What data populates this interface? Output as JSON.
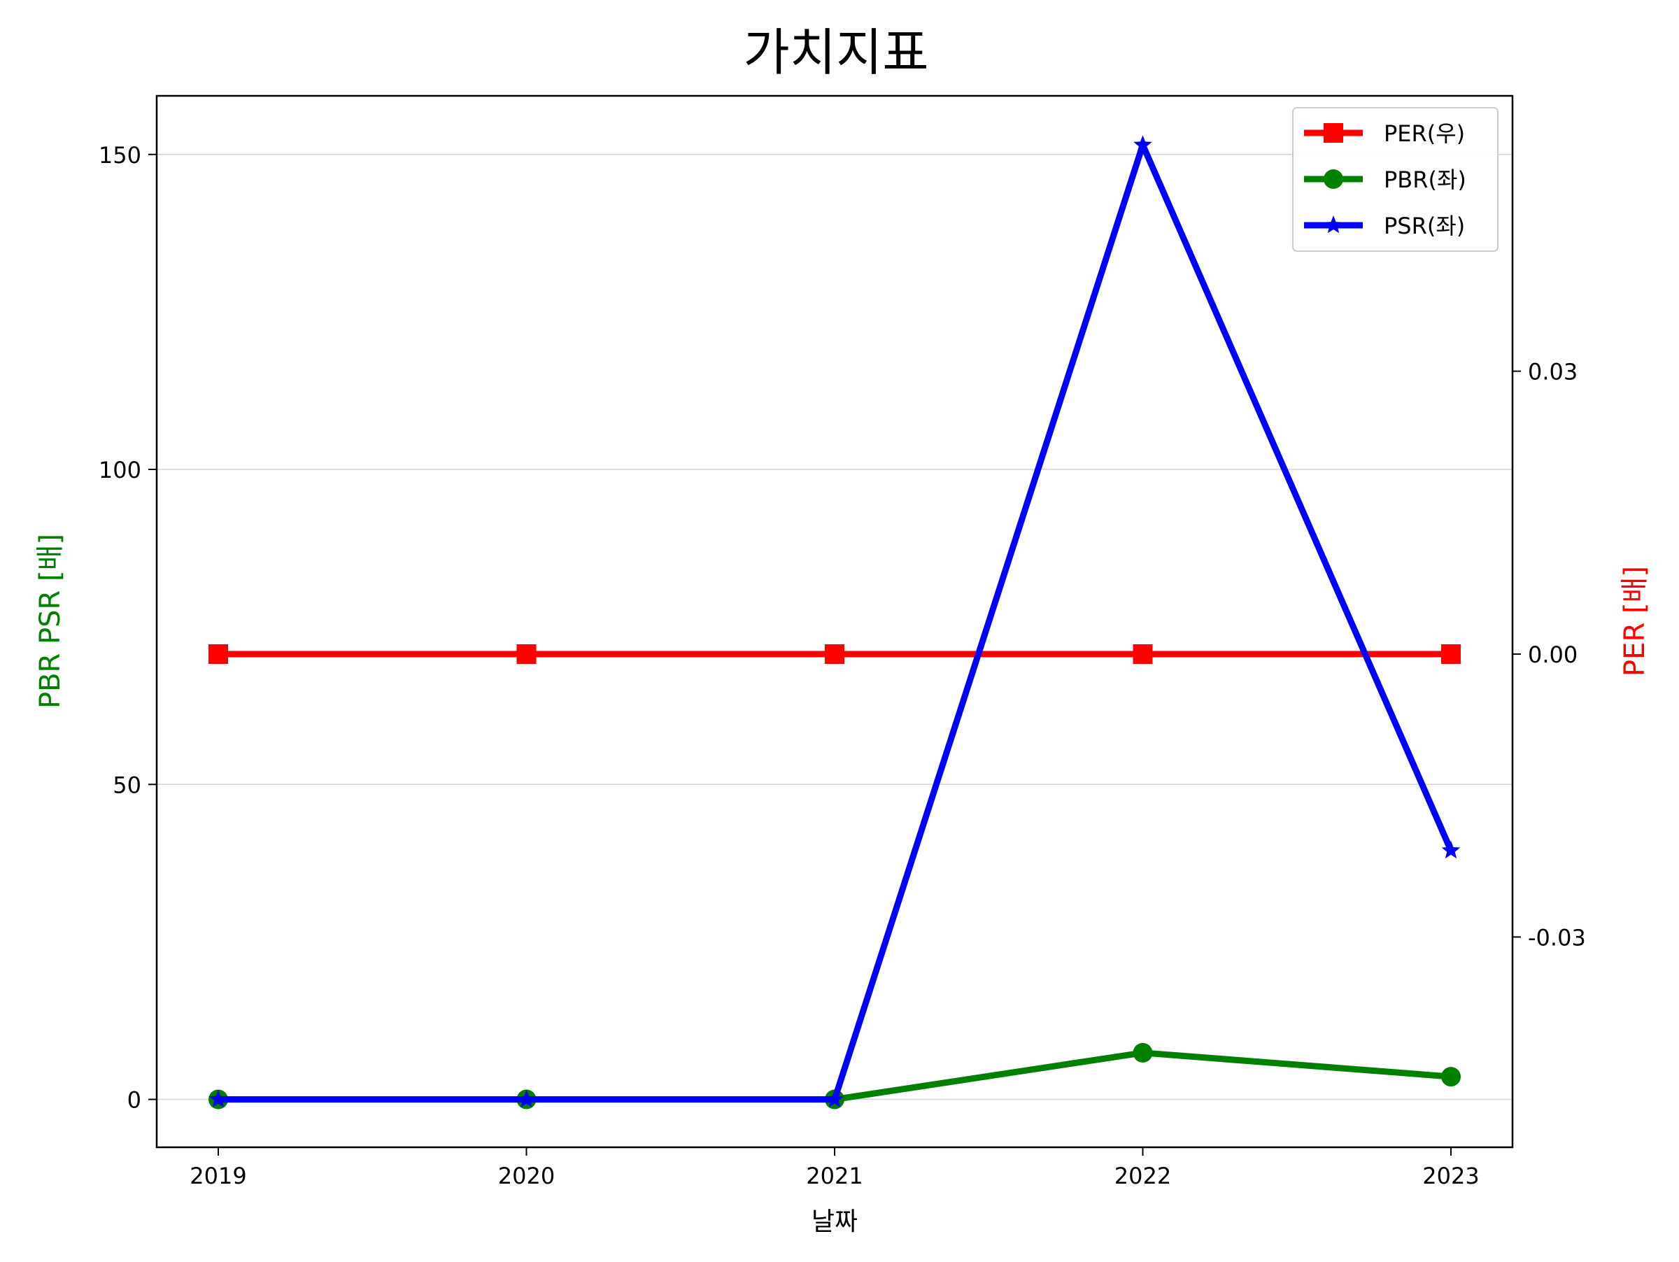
{
  "chart_data": {
    "type": "line",
    "title": "가치지표",
    "xlabel": "날짜",
    "ylabel_left": "PBR PSR [배]",
    "ylabel_right": "PER [배]",
    "categories": [
      "2019",
      "2020",
      "2021",
      "2022",
      "2023"
    ],
    "y_left": {
      "range": [
        -7.6,
        159.3
      ],
      "ticks": [
        0,
        50,
        100,
        150
      ],
      "tick_labels": [
        "0",
        "50",
        "100",
        "150"
      ]
    },
    "y_right": {
      "range": [
        -0.0523,
        0.0592
      ],
      "ticks": [
        -0.03,
        0.0,
        0.03
      ],
      "tick_labels": [
        "-0.03",
        "0.00",
        "0.03"
      ]
    },
    "grid": "horizontal",
    "legend_position": "top-right",
    "series": [
      {
        "name": "PER(우)",
        "axis": "right",
        "color": "#ff0000",
        "marker": "square",
        "values": [
          0,
          0,
          0,
          0,
          0
        ]
      },
      {
        "name": "PBR(좌)",
        "axis": "left",
        "color": "#008000",
        "marker": "circle",
        "values": [
          0,
          0,
          0,
          7.4,
          3.6
        ]
      },
      {
        "name": "PSR(좌)",
        "axis": "left",
        "color": "#0000ff",
        "marker": "star",
        "values": [
          0,
          0,
          0,
          151.5,
          39.5
        ]
      }
    ],
    "colors": {
      "ylabel_left": "#008000",
      "ylabel_right": "#ff0000"
    }
  }
}
